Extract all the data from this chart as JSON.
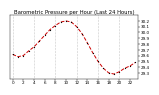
{
  "title": "Barometric Pressure per Hour (Last 24 Hours)",
  "hours": [
    0,
    1,
    2,
    3,
    4,
    5,
    6,
    7,
    8,
    9,
    10,
    11,
    12,
    13,
    14,
    15,
    16,
    17,
    18,
    19,
    20,
    21,
    22,
    23
  ],
  "pressure": [
    29.62,
    29.58,
    29.6,
    29.68,
    29.75,
    29.85,
    29.95,
    30.05,
    30.12,
    30.18,
    30.2,
    30.18,
    30.1,
    29.98,
    29.82,
    29.65,
    29.5,
    29.38,
    29.3,
    29.28,
    29.32,
    29.38,
    29.42,
    29.48
  ],
  "line_color": "#cc0000",
  "marker_color": "#000000",
  "background_color": "#ffffff",
  "grid_color": "#999999",
  "title_fontsize": 3.8,
  "tick_fontsize": 3.0,
  "ylim_min": 29.2,
  "ylim_max": 30.3,
  "ytick_values": [
    29.3,
    29.4,
    29.5,
    29.6,
    29.7,
    29.8,
    29.9,
    30.0,
    30.1,
    30.2
  ],
  "xtick_positions": [
    0,
    2,
    4,
    6,
    8,
    10,
    12,
    14,
    16,
    18,
    20,
    22
  ],
  "vgrid_positions": [
    0,
    4,
    8,
    12,
    16,
    20
  ]
}
